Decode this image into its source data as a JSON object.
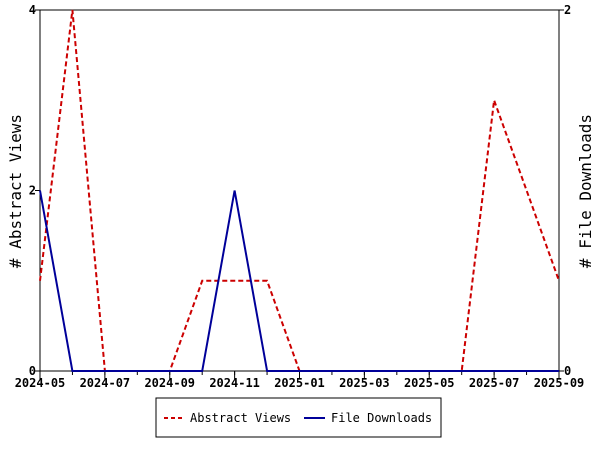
{
  "chart_data": {
    "type": "line",
    "x_ticks": [
      "2024-05",
      "2024-07",
      "2024-09",
      "2024-11",
      "2025-01",
      "2025-03",
      "2025-05",
      "2025-07",
      "2025-09"
    ],
    "x": [
      "2024-05",
      "2024-06",
      "2024-07",
      "2024-08",
      "2024-09",
      "2024-10",
      "2024-11",
      "2024-12",
      "2025-01",
      "2025-02",
      "2025-03",
      "2025-04",
      "2025-05",
      "2025-06",
      "2025-07",
      "2025-08",
      "2025-09"
    ],
    "y_left": {
      "label": "# Abstract Views",
      "range": [
        0,
        4
      ],
      "ticks": [
        "0",
        "2",
        "4"
      ]
    },
    "y_right": {
      "label": "# File Downloads",
      "range": [
        0,
        2
      ],
      "ticks": [
        "0",
        "2"
      ]
    },
    "series": [
      {
        "name": "Abstract Views",
        "axis": "left",
        "color": "#cc0000",
        "dash": "dashed",
        "values": [
          1,
          4,
          0,
          0,
          0,
          1,
          1,
          1,
          0,
          0,
          0,
          0,
          0,
          0,
          3,
          2,
          1
        ]
      },
      {
        "name": "File Downloads",
        "axis": "right",
        "color": "#000099",
        "dash": "solid",
        "values": [
          1,
          0,
          0,
          0,
          0,
          0,
          1,
          0,
          0,
          0,
          0,
          0,
          0,
          0,
          0,
          0,
          0
        ]
      }
    ],
    "grid": false,
    "legend_position": "bottom-center"
  }
}
